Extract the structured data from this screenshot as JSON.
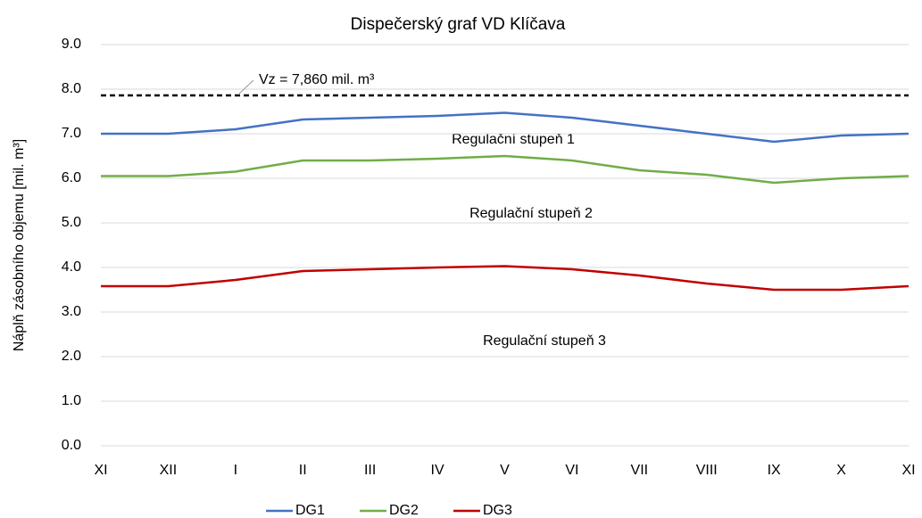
{
  "chart_data": {
    "type": "line",
    "title": "Dispečerský graf VD Klíčava",
    "y_label": "Náplň zásobního objemu [mil. m³]",
    "categories": [
      "XI",
      "XII",
      "I",
      "II",
      "III",
      "IV",
      "V",
      "VI",
      "VII",
      "VIII",
      "IX",
      "X",
      "XI"
    ],
    "series": [
      {
        "name": "DG1",
        "color": "#4472c4",
        "values": [
          7.0,
          7.0,
          7.1,
          7.32,
          7.36,
          7.4,
          7.47,
          7.36,
          7.18,
          7.0,
          6.82,
          6.96,
          7.0
        ]
      },
      {
        "name": "DG2",
        "color": "#70ad47",
        "values": [
          6.05,
          6.05,
          6.15,
          6.4,
          6.4,
          6.44,
          6.5,
          6.4,
          6.18,
          6.08,
          5.9,
          6.0,
          6.05
        ]
      },
      {
        "name": "DG3",
        "color": "#c00000",
        "values": [
          3.58,
          3.58,
          3.72,
          3.92,
          3.96,
          4.0,
          4.03,
          3.96,
          3.82,
          3.64,
          3.5,
          3.5,
          3.58
        ]
      }
    ],
    "reference_line": {
      "value": 7.86,
      "label": "Vz = 7,860 mil. m³"
    },
    "annotations": [
      "Regulační stupeň 1",
      "Regulační stupeň 2",
      "Regulační stupeň 3"
    ],
    "ylim": [
      0,
      9
    ],
    "yticks": [
      {
        "value": 0,
        "label": "0.0"
      },
      {
        "value": 1,
        "label": "1.0"
      },
      {
        "value": 2,
        "label": "2.0"
      },
      {
        "value": 3,
        "label": "3.0"
      },
      {
        "value": 4,
        "label": "4.0"
      },
      {
        "value": 5,
        "label": "5.0"
      },
      {
        "value": 6,
        "label": "6.0"
      },
      {
        "value": 7,
        "label": "7.0"
      },
      {
        "value": 8,
        "label": "8.0"
      },
      {
        "value": 9,
        "label": "9.0"
      }
    ],
    "grid": true,
    "legend": "bottom"
  }
}
